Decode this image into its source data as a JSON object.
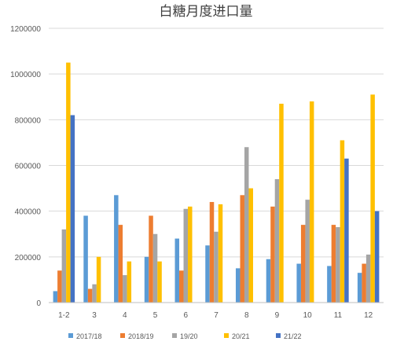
{
  "chart_data": {
    "type": "bar",
    "title": "白糖月度进口量",
    "xlabel": "",
    "ylabel": "",
    "ylim": [
      0,
      1200000
    ],
    "yticks": [
      0,
      200000,
      400000,
      600000,
      800000,
      1000000,
      1200000
    ],
    "ytick_labels": [
      "0",
      "200000",
      "400000",
      "600000",
      "800000",
      "1000000",
      "1200000"
    ],
    "grid": "horizontal",
    "legend_position": "bottom",
    "categories": [
      "1-2",
      "3",
      "4",
      "5",
      "6",
      "7",
      "8",
      "9",
      "10",
      "11",
      "12"
    ],
    "series": [
      {
        "name": "2017/18",
        "color": "#5B9BD5",
        "values": [
          50000,
          380000,
          470000,
          200000,
          280000,
          250000,
          150000,
          190000,
          170000,
          160000,
          130000
        ]
      },
      {
        "name": "2018/19",
        "color": "#ED7D31",
        "values": [
          140000,
          60000,
          340000,
          380000,
          140000,
          440000,
          470000,
          420000,
          340000,
          340000,
          170000
        ]
      },
      {
        "name": "19/20",
        "color": "#A5A5A5",
        "values": [
          320000,
          80000,
          120000,
          300000,
          410000,
          310000,
          680000,
          540000,
          450000,
          330000,
          210000
        ]
      },
      {
        "name": "20/21",
        "color": "#FFC000",
        "values": [
          1050000,
          200000,
          180000,
          180000,
          420000,
          430000,
          500000,
          870000,
          880000,
          710000,
          910000
        ]
      },
      {
        "name": "21/22",
        "color": "#4472C4",
        "values": [
          820000,
          null,
          null,
          null,
          null,
          null,
          null,
          null,
          null,
          630000,
          400000
        ]
      }
    ]
  }
}
